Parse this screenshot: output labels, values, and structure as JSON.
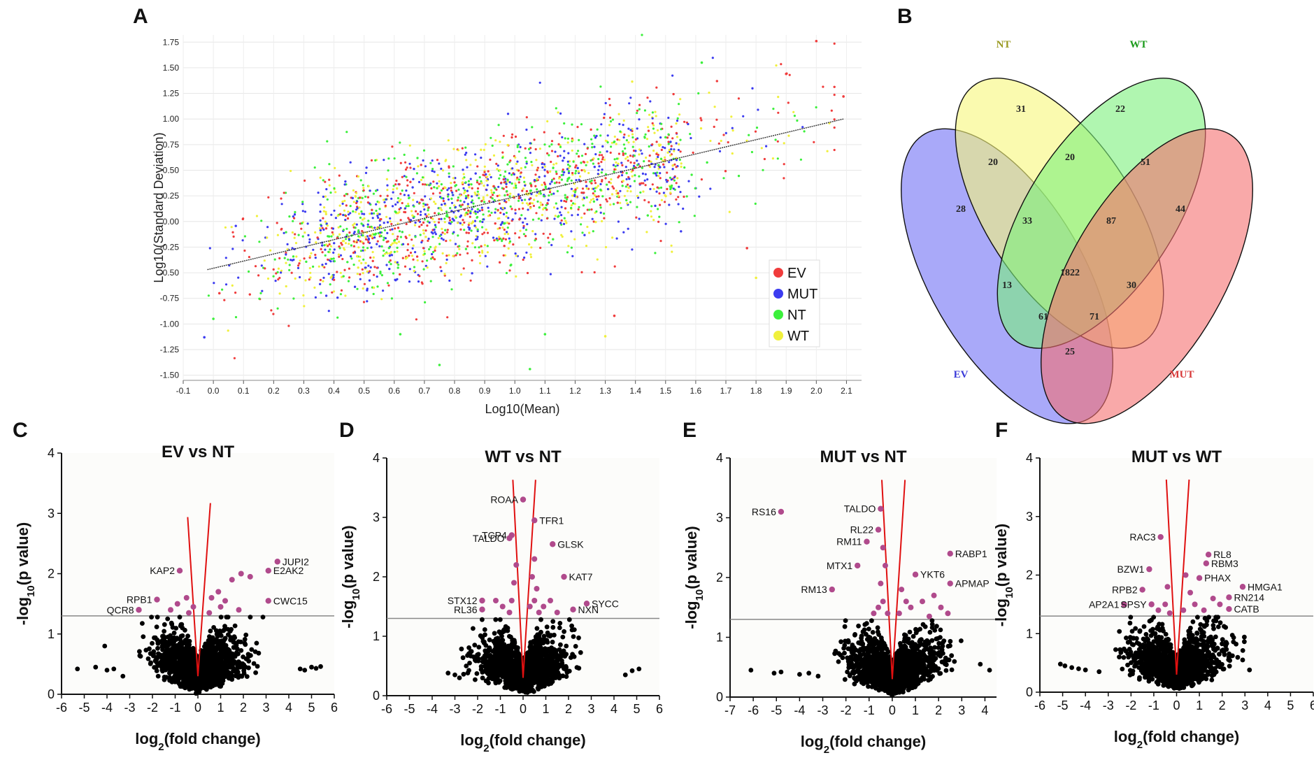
{
  "panels": {
    "A": "A",
    "B": "B",
    "C": "C",
    "D": "D",
    "E": "E",
    "F": "F"
  },
  "colors": {
    "EV": "#f03c3c",
    "MUT": "#3c3cf0",
    "NT": "#3cf03c",
    "WT": "#f0f03c",
    "sig": "#b04a8c",
    "nonsig": "#000000",
    "vline": "#e01010",
    "threshold": "#888888"
  },
  "chart_data": [
    {
      "id": "A",
      "type": "scatter",
      "title": "",
      "xlabel": "Log10(Mean)",
      "ylabel": "Log10(Standard Deviation)",
      "xlim": [
        -0.1,
        2.15
      ],
      "ylim": [
        -1.55,
        1.82
      ],
      "xticks": [
        "-0.1",
        "0.0",
        "0.1",
        "0.2",
        "0.3",
        "0.4",
        "0.5",
        "0.6",
        "0.7",
        "0.8",
        "0.9",
        "1.0",
        "1.1",
        "1.2",
        "1.3",
        "1.4",
        "1.5",
        "1.6",
        "1.7",
        "1.8",
        "1.9",
        "2.0",
        "2.1"
      ],
      "yticks": [
        "1.75",
        "1.50",
        "1.25",
        "1.00",
        "0.75",
        "0.50",
        "0.25",
        "0.00",
        "-0.25",
        "-0.50",
        "-0.75",
        "-1.00",
        "-1.25",
        "-1.50"
      ],
      "series": [
        {
          "name": "EV"
        },
        {
          "name": "MUT"
        },
        {
          "name": "NT"
        },
        {
          "name": "WT"
        }
      ],
      "trendline": {
        "x": [
          -0.02,
          2.09
        ],
        "y": [
          -0.47,
          1.0
        ]
      },
      "outliers": [
        {
          "x": 2.0,
          "y": 1.76,
          "series": "EV"
        },
        {
          "x": 1.62,
          "y": 1.55,
          "series": "NT"
        },
        {
          "x": 1.9,
          "y": 1.44,
          "series": "EV"
        },
        {
          "x": 1.8,
          "y": -0.55,
          "series": "WT"
        },
        {
          "x": 1.05,
          "y": -1.44,
          "series": "NT"
        },
        {
          "x": 0.75,
          "y": -1.4,
          "series": "NT"
        },
        {
          "x": -0.03,
          "y": -1.13,
          "series": "MUT"
        },
        {
          "x": 0.0,
          "y": -0.95,
          "series": "NT"
        },
        {
          "x": 0.02,
          "y": -0.7,
          "series": "EV"
        },
        {
          "x": 1.3,
          "y": -1.12,
          "series": "WT"
        },
        {
          "x": 1.33,
          "y": -0.92,
          "series": "EV"
        },
        {
          "x": 1.77,
          "y": -0.26,
          "series": "EV"
        },
        {
          "x": 2.09,
          "y": 1.22,
          "series": "EV"
        },
        {
          "x": 0.62,
          "y": -1.1,
          "series": "NT"
        },
        {
          "x": 1.1,
          "y": -1.1,
          "series": "NT"
        }
      ],
      "legend": [
        "EV",
        "MUT",
        "NT",
        "WT"
      ],
      "legend_position": "bottom-right"
    },
    {
      "id": "B",
      "type": "venn",
      "sets": [
        "NT",
        "WT",
        "EV",
        "MUT"
      ],
      "regions": {
        "NT_only": 31,
        "WT_only": 22,
        "EV_only": 28,
        "MUT_only": 44,
        "EV_NT": 20,
        "NT_WT": 20,
        "WT_MUT": 51,
        "EV_NT_WT": 33,
        "NT_WT_MUT": 87,
        "EV_WT": 13,
        "NT_MUT": 30,
        "all": 1822,
        "EV_WT_MUT": 61,
        "EV_NT_MUT": 71,
        "EV_MUT": 25
      }
    },
    {
      "id": "C",
      "type": "scatter",
      "title": "EV vs NT",
      "xlabel": "log2(fold change)",
      "ylabel": "-log10(p value)",
      "xlim": [
        -6,
        6
      ],
      "ylim": [
        0,
        4
      ],
      "xticks": [
        "-6",
        "-5",
        "-4",
        "-3",
        "-2",
        "-1",
        "0",
        "1",
        "2",
        "3",
        "4",
        "5",
        "6"
      ],
      "yticks": [
        "0",
        "1",
        "2",
        "3",
        "4"
      ],
      "threshold": 1.3,
      "labeled": [
        {
          "gene": "JUPI2",
          "x": 3.5,
          "y": 2.2
        },
        {
          "gene": "E2AK2",
          "x": 3.1,
          "y": 2.05
        },
        {
          "gene": "KAP2",
          "x": -0.8,
          "y": 2.05
        },
        {
          "gene": "RPB1",
          "x": -1.8,
          "y": 1.57
        },
        {
          "gene": "QCR8",
          "x": -2.6,
          "y": 1.4
        },
        {
          "gene": "CWC15",
          "x": 3.1,
          "y": 1.55
        }
      ],
      "sig_extra": [
        {
          "x": -0.9,
          "y": 1.5
        },
        {
          "x": -0.5,
          "y": 1.6
        },
        {
          "x": -0.2,
          "y": 1.45
        },
        {
          "x": 0.6,
          "y": 1.6
        },
        {
          "x": 1.0,
          "y": 1.45
        },
        {
          "x": 1.2,
          "y": 1.55
        },
        {
          "x": 1.5,
          "y": 1.9
        },
        {
          "x": 1.9,
          "y": 2.0
        },
        {
          "x": 2.3,
          "y": 1.95
        },
        {
          "x": 0.5,
          "y": 1.35
        },
        {
          "x": -0.4,
          "y": 1.35
        },
        {
          "x": 1.8,
          "y": 1.4
        },
        {
          "x": -1.2,
          "y": 1.4
        },
        {
          "x": 0.9,
          "y": 1.7
        }
      ],
      "far_points": [
        {
          "x": -5.3,
          "y": 0.42
        },
        {
          "x": -4.5,
          "y": 0.45
        },
        {
          "x": -4.0,
          "y": 0.4
        },
        {
          "x": -3.7,
          "y": 0.42
        },
        {
          "x": -3.3,
          "y": 0.3
        },
        {
          "x": -4.1,
          "y": 0.8
        },
        {
          "x": 4.5,
          "y": 0.42
        },
        {
          "x": 4.7,
          "y": 0.4
        },
        {
          "x": 5.0,
          "y": 0.45
        },
        {
          "x": 5.2,
          "y": 0.43
        },
        {
          "x": 5.4,
          "y": 0.46
        }
      ]
    },
    {
      "id": "D",
      "type": "scatter",
      "title": "WT vs NT",
      "xlabel": "log2(fold change)",
      "ylabel": "-log10(p value)",
      "xlim": [
        -6,
        6
      ],
      "ylim": [
        0,
        4
      ],
      "xticks": [
        "-6",
        "-5",
        "-4",
        "-3",
        "-2",
        "-1",
        "0",
        "1",
        "2",
        "3",
        "4",
        "5",
        "6"
      ],
      "yticks": [
        "0",
        "1",
        "2",
        "3",
        "4"
      ],
      "threshold": 1.3,
      "labeled": [
        {
          "gene": "ROAA",
          "x": 0.0,
          "y": 3.3
        },
        {
          "gene": "TFR1",
          "x": 0.5,
          "y": 2.95
        },
        {
          "gene": "TCP4",
          "x": -0.5,
          "y": 2.7
        },
        {
          "gene": "TALDO",
          "x": -0.6,
          "y": 2.65
        },
        {
          "gene": "GLSK",
          "x": 1.3,
          "y": 2.55
        },
        {
          "gene": "KAT7",
          "x": 1.8,
          "y": 2.0
        },
        {
          "gene": "STX12",
          "x": -1.8,
          "y": 1.6
        },
        {
          "gene": "RL36",
          "x": -1.8,
          "y": 1.45
        },
        {
          "gene": "NXN",
          "x": 2.2,
          "y": 1.45
        },
        {
          "gene": "SYCC",
          "x": 2.8,
          "y": 1.55
        }
      ],
      "sig_extra": [
        {
          "x": 0.5,
          "y": 2.3
        },
        {
          "x": 0.4,
          "y": 2.0
        },
        {
          "x": 0.6,
          "y": 1.8
        },
        {
          "x": 0.5,
          "y": 1.6
        },
        {
          "x": 0.9,
          "y": 1.5
        },
        {
          "x": 1.2,
          "y": 1.6
        },
        {
          "x": -0.3,
          "y": 2.2
        },
        {
          "x": -0.4,
          "y": 1.9
        },
        {
          "x": -0.5,
          "y": 1.6
        },
        {
          "x": -0.9,
          "y": 1.5
        },
        {
          "x": -1.2,
          "y": 1.6
        },
        {
          "x": 0.7,
          "y": 1.4
        },
        {
          "x": -0.6,
          "y": 1.4
        },
        {
          "x": 1.5,
          "y": 1.4
        },
        {
          "x": 0.3,
          "y": 1.5
        }
      ],
      "far_points": [
        {
          "x": -3.3,
          "y": 0.38
        },
        {
          "x": -3.0,
          "y": 0.35
        },
        {
          "x": -2.8,
          "y": 0.3
        },
        {
          "x": 4.5,
          "y": 0.35
        },
        {
          "x": 4.8,
          "y": 0.42
        },
        {
          "x": 5.1,
          "y": 0.45
        },
        {
          "x": -2.5,
          "y": 0.5
        }
      ]
    },
    {
      "id": "E",
      "type": "scatter",
      "title": "MUT vs NT",
      "xlabel": "log2(fold change)",
      "ylabel": "-log10(p value)",
      "xlim": [
        -7,
        4.5
      ],
      "ylim": [
        0,
        4
      ],
      "xticks": [
        "-7",
        "-6",
        "-5",
        "-4",
        "-3",
        "-2",
        "-1",
        "0",
        "1",
        "2",
        "3",
        "4"
      ],
      "yticks": [
        "0",
        "1",
        "2",
        "3",
        "4"
      ],
      "threshold": 1.3,
      "labeled": [
        {
          "gene": "RS16",
          "x": -4.8,
          "y": 3.1
        },
        {
          "gene": "TALDO",
          "x": -0.5,
          "y": 3.15
        },
        {
          "gene": "RL22",
          "x": -0.6,
          "y": 2.8
        },
        {
          "gene": "RM11",
          "x": -1.1,
          "y": 2.6
        },
        {
          "gene": "RABP1",
          "x": 2.5,
          "y": 2.4
        },
        {
          "gene": "MTX1",
          "x": -1.5,
          "y": 2.2
        },
        {
          "gene": "YKT6",
          "x": 1.0,
          "y": 2.05
        },
        {
          "gene": "APMAP",
          "x": 2.5,
          "y": 1.9
        },
        {
          "gene": "RM13",
          "x": -2.6,
          "y": 1.8
        }
      ],
      "sig_extra": [
        {
          "x": -0.4,
          "y": 2.5
        },
        {
          "x": -0.3,
          "y": 2.2
        },
        {
          "x": -0.5,
          "y": 1.9
        },
        {
          "x": -0.4,
          "y": 1.6
        },
        {
          "x": -0.6,
          "y": 1.5
        },
        {
          "x": 0.4,
          "y": 1.8
        },
        {
          "x": 0.6,
          "y": 1.6
        },
        {
          "x": 0.8,
          "y": 1.5
        },
        {
          "x": 1.3,
          "y": 1.6
        },
        {
          "x": 1.8,
          "y": 1.7
        },
        {
          "x": 2.1,
          "y": 1.5
        },
        {
          "x": 2.4,
          "y": 1.4
        },
        {
          "x": -0.8,
          "y": 1.4
        },
        {
          "x": 0.3,
          "y": 1.4
        },
        {
          "x": 1.6,
          "y": 1.35
        },
        {
          "x": -0.2,
          "y": 1.4
        }
      ],
      "far_points": [
        {
          "x": -6.1,
          "y": 0.45
        },
        {
          "x": -5.1,
          "y": 0.4
        },
        {
          "x": -4.8,
          "y": 0.42
        },
        {
          "x": -4.0,
          "y": 0.38
        },
        {
          "x": -3.6,
          "y": 0.4
        },
        {
          "x": -3.2,
          "y": 0.35
        },
        {
          "x": 4.2,
          "y": 0.45
        },
        {
          "x": 3.8,
          "y": 0.55
        }
      ]
    },
    {
      "id": "F",
      "type": "scatter",
      "title": "MUT vs WT",
      "xlabel": "log2(fold change)",
      "ylabel": "-log10(p value)",
      "xlim": [
        -6,
        6
      ],
      "ylim": [
        0,
        4
      ],
      "xticks": [
        "-6",
        "-5",
        "-4",
        "-3",
        "-2",
        "-1",
        "0",
        "1",
        "2",
        "3",
        "4",
        "5",
        "6"
      ],
      "yticks": [
        "0",
        "1",
        "2",
        "3",
        "4"
      ],
      "threshold": 1.3,
      "labeled": [
        {
          "gene": "RAC3",
          "x": -0.7,
          "y": 2.65
        },
        {
          "gene": "RL8",
          "x": 1.4,
          "y": 2.35
        },
        {
          "gene": "RBM3",
          "x": 1.3,
          "y": 2.2
        },
        {
          "gene": "BZW1",
          "x": -1.2,
          "y": 2.1
        },
        {
          "gene": "PHAX",
          "x": 1.0,
          "y": 1.95
        },
        {
          "gene": "RPB2",
          "x": -1.5,
          "y": 1.75
        },
        {
          "gene": "HMGA1",
          "x": 2.9,
          "y": 1.8
        },
        {
          "gene": "RN214",
          "x": 2.3,
          "y": 1.62
        },
        {
          "gene": "AP2A1",
          "x": -2.3,
          "y": 1.5
        },
        {
          "gene": "SPSY",
          "x": -1.1,
          "y": 1.5
        },
        {
          "gene": "CATB",
          "x": 2.3,
          "y": 1.42
        }
      ],
      "sig_extra": [
        {
          "x": 0.4,
          "y": 2.0
        },
        {
          "x": 0.6,
          "y": 1.7
        },
        {
          "x": 0.8,
          "y": 1.5
        },
        {
          "x": -0.4,
          "y": 1.8
        },
        {
          "x": -0.5,
          "y": 1.5
        },
        {
          "x": -0.8,
          "y": 1.4
        },
        {
          "x": 1.6,
          "y": 1.6
        },
        {
          "x": 1.9,
          "y": 1.5
        },
        {
          "x": 0.3,
          "y": 1.4
        },
        {
          "x": -0.3,
          "y": 1.35
        },
        {
          "x": 1.2,
          "y": 1.4
        }
      ],
      "far_points": [
        {
          "x": -5.1,
          "y": 0.48
        },
        {
          "x": -4.9,
          "y": 0.45
        },
        {
          "x": -4.6,
          "y": 0.42
        },
        {
          "x": -4.3,
          "y": 0.4
        },
        {
          "x": -4.0,
          "y": 0.38
        },
        {
          "x": -3.4,
          "y": 0.35
        },
        {
          "x": 3.2,
          "y": 0.38
        },
        {
          "x": 2.9,
          "y": 0.55
        }
      ]
    }
  ]
}
